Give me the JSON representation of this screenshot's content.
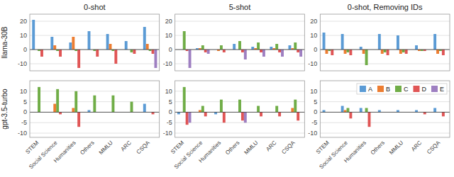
{
  "chart_data": [
    {
      "type": "bar",
      "title": "0-shot",
      "y_label": "llama-30B",
      "categories": [
        "STEM",
        "Social Science",
        "Humanities",
        "Others",
        "MMLU",
        "ARC",
        "CSQA"
      ],
      "series": [
        {
          "color": "#5b9bd5",
          "values": [
            21,
            9,
            5,
            13,
            11,
            6,
            16
          ]
        },
        {
          "color": "#ed7d31",
          "values": [
            0,
            3,
            9,
            0,
            4,
            0,
            4
          ]
        },
        {
          "color": "#70ad47",
          "values": [
            -1,
            -1,
            -1,
            -1,
            -1,
            -2,
            -1
          ]
        },
        {
          "color": "#e05555",
          "values": [
            -5,
            -5,
            -13,
            -5,
            -10,
            -3,
            -3
          ]
        },
        {
          "color": "#9e7fc1",
          "values": [
            0,
            0,
            0,
            0,
            0,
            0,
            -13
          ]
        }
      ],
      "ylim": [
        -15,
        25
      ],
      "yticks": [
        -10,
        0,
        10,
        20
      ],
      "grid": true,
      "tick_labels": "y"
    },
    {
      "type": "bar",
      "title": "5-shot",
      "categories": [
        "STEM",
        "Social Science",
        "Humanities",
        "Others",
        "MMLU",
        "ARC",
        "CSQA"
      ],
      "series": [
        {
          "color": "#5b9bd5",
          "values": [
            0,
            1,
            0,
            4,
            2,
            2,
            3
          ]
        },
        {
          "color": "#ed7d31",
          "values": [
            0,
            1,
            -1,
            0,
            1,
            1,
            1
          ]
        },
        {
          "color": "#70ad47",
          "values": [
            13,
            3,
            3,
            6,
            5,
            4,
            5
          ]
        },
        {
          "color": "#e05555",
          "values": [
            -1,
            -2,
            -2,
            -2,
            -2,
            -2,
            -2
          ]
        },
        {
          "color": "#9e7fc1",
          "values": [
            -13,
            -3,
            0,
            -7,
            -5,
            -5,
            -5
          ]
        }
      ],
      "ylim": [
        -15,
        25
      ],
      "yticks": [
        -10,
        0,
        10,
        20
      ],
      "grid": true,
      "tick_labels": "y"
    },
    {
      "type": "bar",
      "title": "0-shot, Removing IDs",
      "categories": [
        "STEM",
        "Social Science",
        "Humanities",
        "Others",
        "MMLU",
        "ARC",
        "CSQA"
      ],
      "series": [
        {
          "color": "#5b9bd5",
          "values": [
            12,
            11,
            2,
            11,
            10,
            3,
            11
          ]
        },
        {
          "color": "#ed7d31",
          "values": [
            -3,
            -3,
            -3,
            -3,
            -3,
            -1,
            -3
          ]
        },
        {
          "color": "#70ad47",
          "values": [
            -1,
            -2,
            -11,
            -2,
            -2,
            -1,
            -1
          ]
        },
        {
          "color": "#e05555",
          "values": [
            -4,
            -4,
            0,
            -4,
            -3,
            -1,
            -4
          ]
        },
        {
          "color": "#9e7fc1",
          "values": [
            0,
            0,
            0,
            0,
            0,
            0,
            0
          ]
        }
      ],
      "ylim": [
        -15,
        25
      ],
      "yticks": [
        -10,
        0,
        10,
        20
      ],
      "grid": true,
      "tick_labels": "y"
    },
    {
      "type": "bar",
      "y_label": "gpt-3.5-turbo",
      "categories": [
        "STEM",
        "Social Science",
        "Humanities",
        "Others",
        "MMLU",
        "ARC",
        "CSQA"
      ],
      "series": [
        {
          "color": "#5b9bd5",
          "values": [
            0,
            0,
            0,
            1,
            0,
            0,
            4
          ]
        },
        {
          "color": "#ed7d31",
          "values": [
            0,
            4,
            2,
            0,
            0,
            0,
            0
          ]
        },
        {
          "color": "#70ad47",
          "values": [
            12,
            11,
            10,
            8,
            8,
            5,
            0
          ]
        },
        {
          "color": "#e05555",
          "values": [
            0,
            -1,
            -7,
            0,
            0,
            0,
            -1
          ]
        },
        {
          "color": "#9e7fc1",
          "values": [
            0,
            0,
            0,
            0,
            0,
            0,
            0
          ]
        }
      ],
      "ylim": [
        -12,
        15
      ],
      "yticks": [
        -10,
        -5,
        0,
        5,
        10
      ],
      "grid": true
    },
    {
      "type": "bar",
      "categories": [
        "STEM",
        "Social Science",
        "Humanities",
        "Others",
        "MMLU",
        "ARC",
        "CSQA"
      ],
      "series": [
        {
          "color": "#5b9bd5",
          "values": [
            -1,
            0,
            -1,
            0,
            0,
            0,
            0
          ]
        },
        {
          "color": "#ed7d31",
          "values": [
            0,
            1,
            0,
            0,
            0,
            0,
            2
          ]
        },
        {
          "color": "#70ad47",
          "values": [
            12,
            3,
            6,
            6,
            3,
            3,
            6
          ]
        },
        {
          "color": "#e05555",
          "values": [
            -6,
            -2,
            -5,
            -4,
            -2,
            -2,
            -4
          ]
        },
        {
          "color": "#9e7fc1",
          "values": [
            -5,
            0,
            0,
            -5,
            0,
            0,
            0
          ]
        }
      ],
      "ylim": [
        -12,
        15
      ],
      "yticks": [
        -10,
        -5,
        0,
        5,
        10
      ],
      "grid": true
    },
    {
      "type": "bar",
      "categories": [
        "STEM",
        "Social Science",
        "Humanities",
        "Others",
        "MMLU",
        "ARC",
        "CSQA"
      ],
      "series": [
        {
          "name": "A",
          "color": "#5b9bd5",
          "values": [
            1,
            3,
            2,
            1,
            1,
            1,
            2
          ]
        },
        {
          "name": "B",
          "color": "#ed7d31",
          "values": [
            0,
            1,
            0,
            0,
            0,
            0,
            0
          ]
        },
        {
          "name": "C",
          "color": "#70ad47",
          "values": [
            0,
            2,
            2,
            0,
            0,
            0,
            0
          ]
        },
        {
          "name": "D",
          "color": "#e05555",
          "values": [
            0,
            -3,
            -7,
            0,
            0,
            -1,
            -2
          ]
        },
        {
          "name": "E",
          "color": "#9e7fc1",
          "values": [
            0,
            0,
            0,
            0,
            0,
            0,
            0
          ]
        }
      ],
      "ylim": [
        -12,
        15
      ],
      "yticks": [
        -10,
        -5,
        0,
        5,
        10
      ],
      "grid": true,
      "legend": "upper right"
    }
  ]
}
